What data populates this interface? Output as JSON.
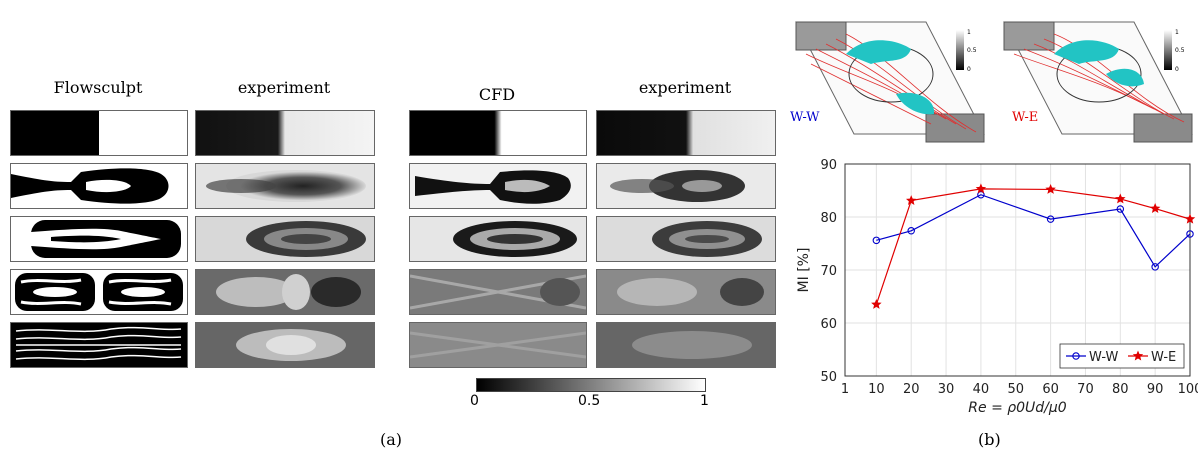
{
  "panel_a": {
    "label": "(a)",
    "headers": {
      "flowsculpt": "Flowsculpt",
      "experiment_left": "experiment",
      "cfd": "CFD",
      "experiment_right": "experiment"
    },
    "colorbar": {
      "ticks": [
        "0",
        "0.5",
        "1"
      ]
    }
  },
  "panel_b": {
    "label": "(b)",
    "inset_left_label": "W-W",
    "inset_right_label": "W-E",
    "inset_colorbar_ticks": [
      "1",
      "0.5",
      "0"
    ],
    "colors": {
      "ww": "#0000cc",
      "we": "#e00000",
      "particles": "#22c4c4",
      "streamlines": "#e03030"
    }
  },
  "chart_data": {
    "type": "line",
    "xlabel": "Re = ρ0Ud/μ0",
    "ylabel": "MI [%]",
    "xlim": [
      1,
      100
    ],
    "ylim": [
      50,
      90
    ],
    "xticks": [
      "1",
      "10",
      "20",
      "30",
      "40",
      "50",
      "60",
      "70",
      "80",
      "90",
      "100"
    ],
    "yticks": [
      "50",
      "60",
      "70",
      "80",
      "90"
    ],
    "grid": true,
    "legend": "bottom-right",
    "series": [
      {
        "name": "W-W",
        "marker": "circle",
        "color": "#0000cc",
        "x": [
          10,
          20,
          40,
          60,
          80,
          90,
          100
        ],
        "y": [
          75.6,
          77.4,
          84.2,
          79.6,
          81.5,
          70.6,
          76.8
        ]
      },
      {
        "name": "W-E",
        "marker": "star",
        "color": "#e00000",
        "x": [
          10,
          20,
          40,
          60,
          80,
          90,
          100
        ],
        "y": [
          63.5,
          83.1,
          85.3,
          85.2,
          83.4,
          81.6,
          79.6
        ]
      }
    ]
  }
}
